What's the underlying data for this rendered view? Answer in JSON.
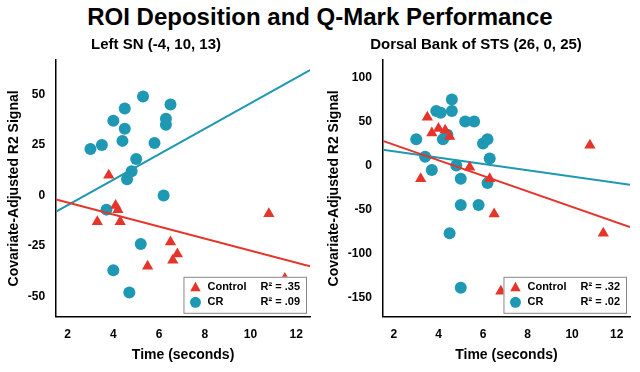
{
  "title": "ROI Deposition and Q-Mark Performance",
  "chart_data": [
    {
      "type": "scatter",
      "title": "Left SN (-4, 10, 13)",
      "x_label": "Time (seconds)",
      "y_label": "Covariate-Adjusted R2 Signal",
      "xlim": [
        1.5,
        12.6
      ],
      "xticks": [
        2,
        4,
        6,
        8,
        10,
        12
      ],
      "ylim": [
        -60,
        67
      ],
      "yticks": [
        -50,
        -25,
        0,
        25,
        50
      ],
      "grid": false,
      "legend": "lower right",
      "series": [
        {
          "name": "Control",
          "color": "#e5352b",
          "marker": "triangle",
          "r_squared": 0.35,
          "r_squared_label": "R² = .35",
          "x": [
            3.3,
            3.8,
            4.1,
            4.2,
            4.3,
            5.5,
            6.5,
            6.6,
            6.8,
            10.8,
            11.5
          ],
          "values": [
            -13,
            10,
            -5,
            -7,
            -13,
            -35,
            -23,
            -32,
            -29,
            -9,
            -41
          ],
          "trend": {
            "x": [
              1.5,
              12.6
            ],
            "y": [
              -2,
              -35
            ]
          }
        },
        {
          "name": "CR",
          "color": "#1e98b3",
          "marker": "circle",
          "r_squared": 0.09,
          "r_squared_label": "R² = .09",
          "x": [
            3.0,
            3.5,
            3.7,
            4.0,
            4.0,
            4.4,
            4.5,
            4.5,
            4.6,
            4.7,
            4.8,
            5.0,
            5.3,
            5.2,
            5.8,
            6.2,
            6.3,
            6.3,
            6.5
          ],
          "values": [
            23,
            25,
            -7,
            37,
            -37,
            27,
            33,
            43,
            8,
            -48,
            12,
            18,
            49,
            -24,
            26,
            0,
            35,
            38,
            45
          ],
          "trend": {
            "x": [
              1.5,
              12.6
            ],
            "y": [
              -8,
              62
            ]
          }
        }
      ]
    },
    {
      "type": "scatter",
      "title": "Dorsal Bank of STS (26, 0, 25)",
      "x_label": "Time (seconds)",
      "y_label": "Covariate-Adjusted R2 Signal",
      "xlim": [
        1.5,
        12.6
      ],
      "xticks": [
        2,
        4,
        6,
        8,
        10,
        12
      ],
      "ylim": [
        -172,
        120
      ],
      "yticks": [
        -150,
        -100,
        -50,
        0,
        50,
        100
      ],
      "grid": false,
      "legend": "lower right",
      "series": [
        {
          "name": "Control",
          "color": "#e5352b",
          "marker": "triangle",
          "r_squared": 0.32,
          "r_squared_label": "R² = .32",
          "x": [
            3.2,
            3.5,
            3.7,
            4.0,
            4.3,
            4.5,
            5.4,
            6.3,
            6.5,
            6.8,
            10.8,
            11.4
          ],
          "values": [
            -15,
            55,
            37,
            42,
            40,
            33,
            -2,
            -15,
            -55,
            -143,
            23,
            -77
          ],
          "trend": {
            "x": [
              1.5,
              12.6
            ],
            "y": [
              28,
              -70
            ]
          }
        },
        {
          "name": "CR",
          "color": "#1e98b3",
          "marker": "circle",
          "r_squared": 0.02,
          "r_squared_label": "R² = .02",
          "x": [
            3.0,
            3.4,
            3.7,
            3.9,
            4.1,
            4.2,
            4.4,
            4.6,
            4.6,
            4.5,
            4.8,
            5.0,
            5.0,
            5.0,
            5.2,
            5.6,
            6.0,
            6.2,
            6.2,
            6.3,
            5.8
          ],
          "values": [
            30,
            10,
            -5,
            62,
            60,
            30,
            35,
            75,
            62,
            -77,
            0,
            -15,
            -45,
            -139,
            50,
            50,
            25,
            30,
            -20,
            8,
            -45
          ],
          "trend": {
            "x": [
              1.5,
              12.6
            ],
            "y": [
              18,
              -22
            ]
          }
        }
      ]
    }
  ]
}
